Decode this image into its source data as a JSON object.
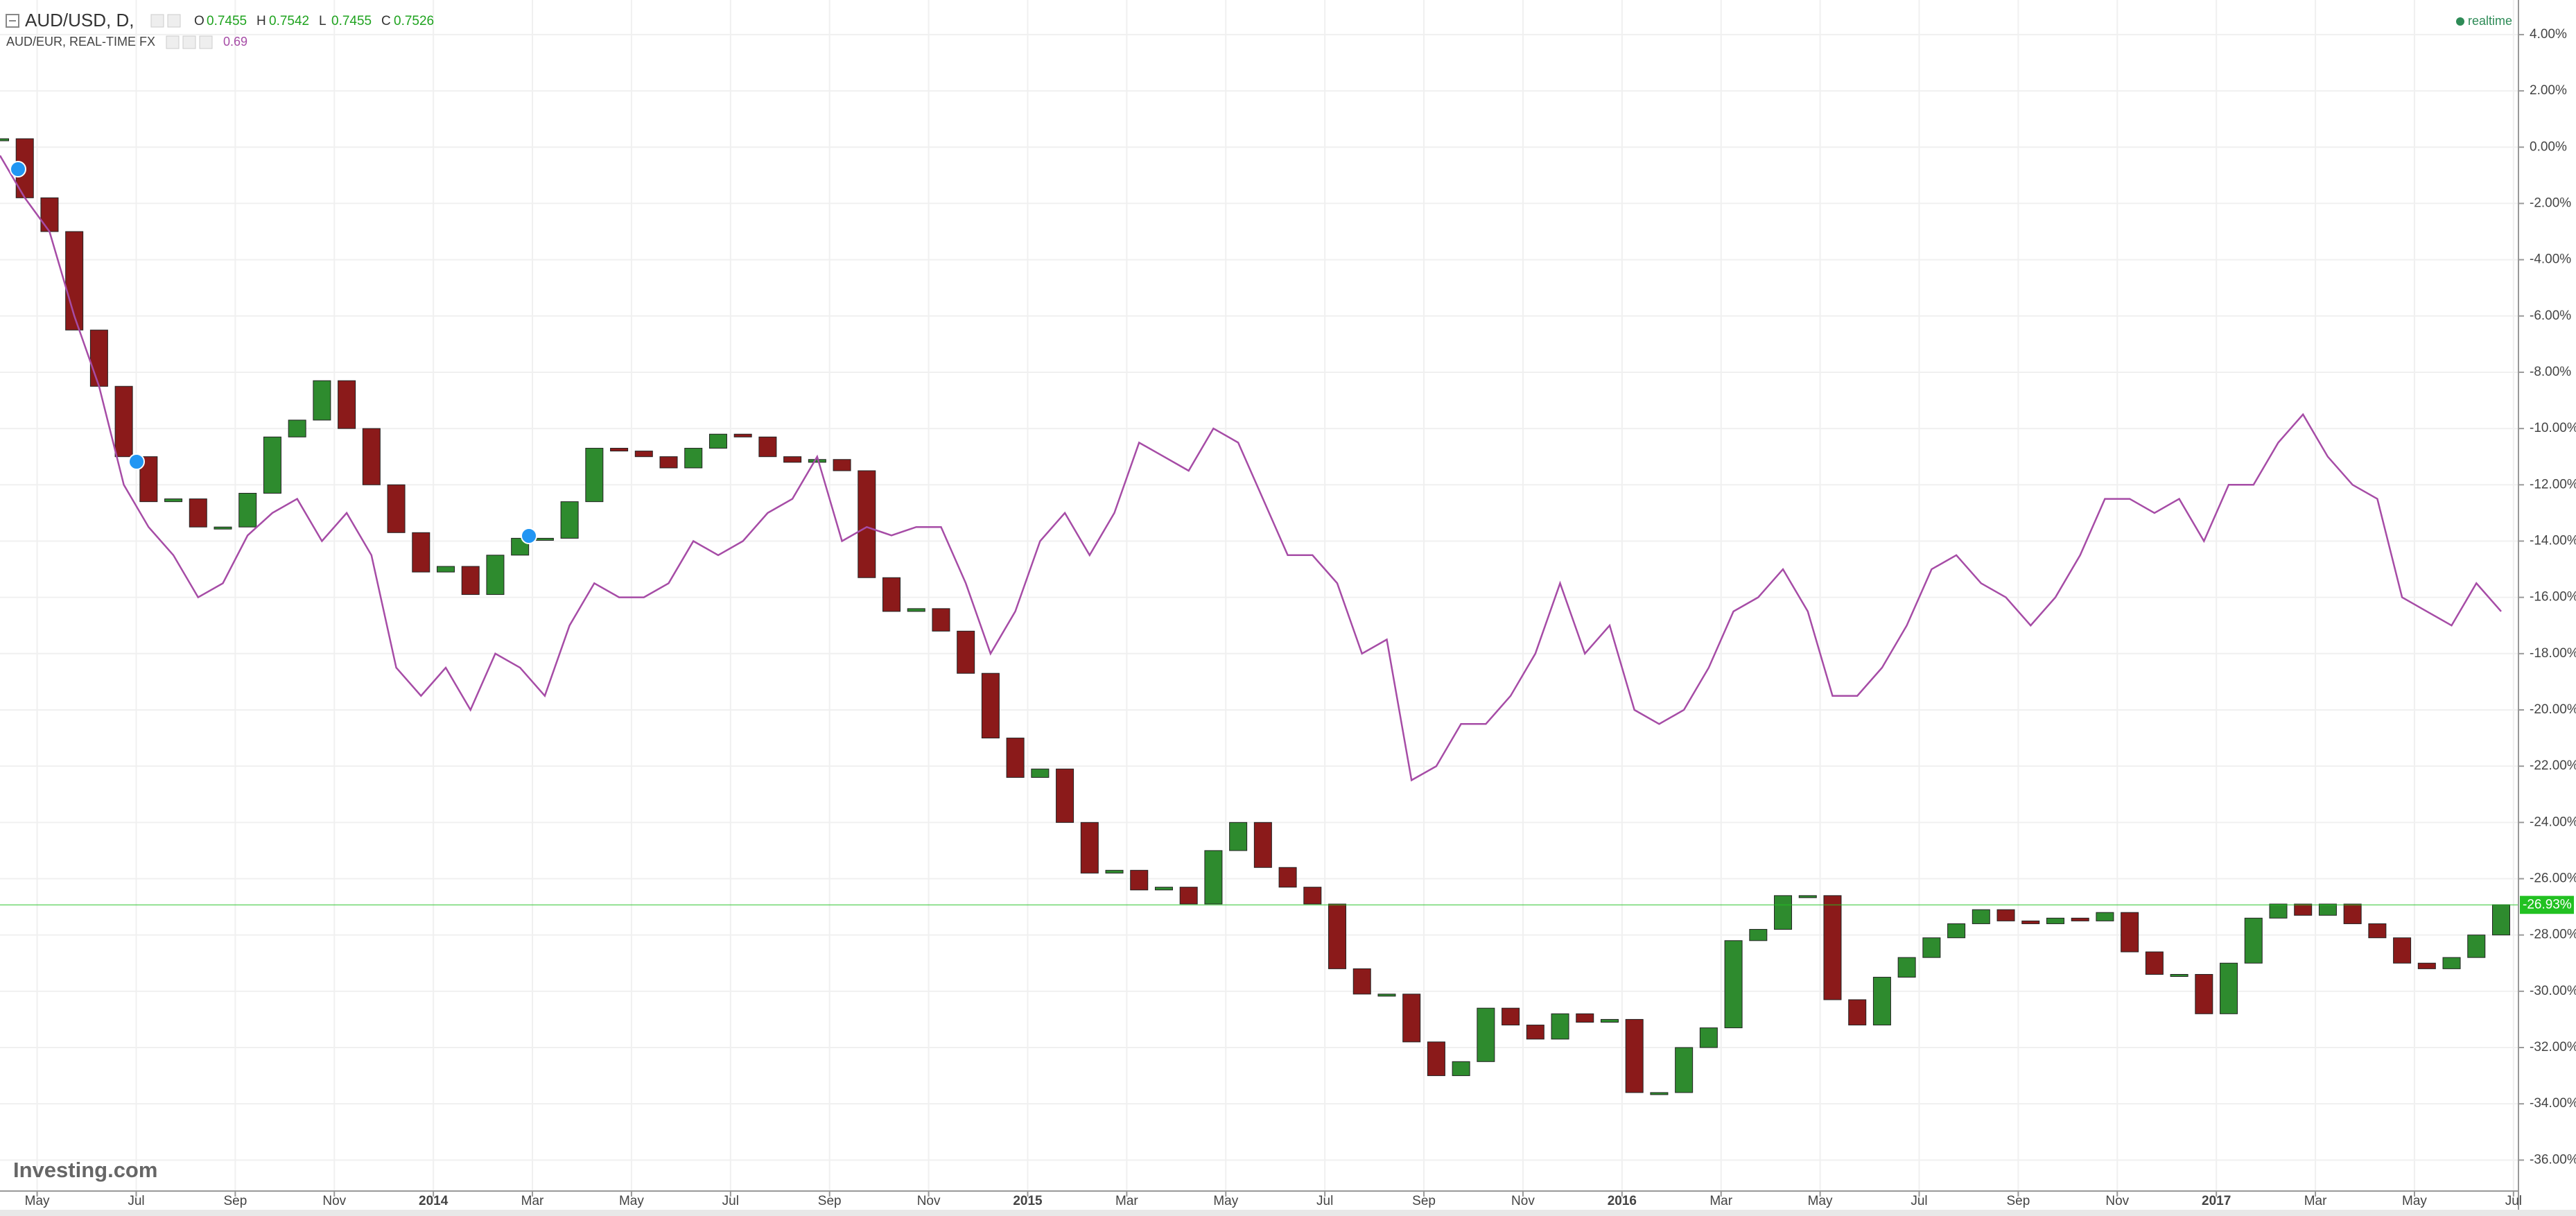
{
  "chart_data": {
    "type": "candlestick",
    "legend_title": "AUD/USD, D,",
    "ohlc": [
      {
        "label": "O",
        "value": 0.7455
      },
      {
        "label": "H",
        "value": 0.7542
      },
      {
        "label": "L",
        "value": 0.7455
      },
      {
        "label": "C",
        "value": 0.7526
      }
    ],
    "status": "realtime",
    "brand": "Investing.com",
    "x": [
      -0.75,
      -0.25,
      0.25,
      0.75,
      1.25,
      1.75,
      2.25,
      2.75,
      3.25,
      3.75,
      4.25,
      4.75,
      5.25,
      5.75,
      6.25,
      6.75,
      7.25,
      7.75,
      8.25,
      8.75,
      9.25,
      9.75,
      10.25,
      10.75,
      11.25,
      11.75,
      12.25,
      12.75,
      13.25,
      13.75,
      14.25,
      14.75,
      15.25,
      15.75,
      16.25,
      16.75,
      17.25,
      17.75,
      18.25,
      18.75,
      19.25,
      19.75,
      20.25,
      20.75,
      21.25,
      21.75,
      22.25,
      22.75,
      23.25,
      23.75,
      24.25,
      24.75,
      25.25,
      25.75,
      26.25,
      26.75,
      27.25,
      27.75,
      28.25,
      28.75,
      29.25,
      29.75,
      30.25,
      30.75,
      31.25,
      31.75,
      32.25,
      32.75,
      33.25,
      33.75,
      34.25,
      34.75,
      35.25,
      35.75,
      36.25,
      36.75,
      37.25,
      37.75,
      38.25,
      38.75,
      39.25,
      39.75,
      40.25,
      40.75,
      41.25,
      41.75,
      42.25,
      42.75,
      43.25,
      43.75,
      44.25,
      44.75,
      45.25,
      45.75,
      46.25,
      46.75,
      47.25,
      47.75,
      48.25,
      48.75,
      49.25,
      49.75
    ],
    "series": [
      {
        "name": "AUD/USD, D,",
        "type": "candlestick",
        "up_color": "#2e8b2e",
        "down_color": "#8b1a1a",
        "color": "#22c122",
        "last_value_label": "-26.93%",
        "values": [
          0.3,
          -1.8,
          -3,
          -6.5,
          -8.5,
          -11,
          -12.6,
          -12.5,
          -13.5,
          -13.5,
          -12.3,
          -10.3,
          -9.7,
          -8.3,
          -10,
          -12,
          -13.7,
          -15.1,
          -14.9,
          -15.9,
          -14.5,
          -13.9,
          -13.9,
          -12.6,
          -10.7,
          -10.8,
          -11,
          -11.4,
          -10.7,
          -10.2,
          -10.3,
          -11,
          -11.2,
          -11.1,
          -11.5,
          -15.3,
          -16.5,
          -16.4,
          -17.2,
          -18.7,
          -21,
          -22.4,
          -22.1,
          -24,
          -25.8,
          -25.7,
          -26.4,
          -26.3,
          -26.9,
          -25,
          -24,
          -25.6,
          -26.3,
          -26.9,
          -29.2,
          -30.1,
          -30.1,
          -31.8,
          -33,
          -32.5,
          -30.6,
          -31.2,
          -31.7,
          -30.8,
          -31.1,
          -31,
          -33.6,
          -33.6,
          -32,
          -31.3,
          -28.2,
          -27.8,
          -26.6,
          -26.6,
          -30.3,
          -31.2,
          -29.5,
          -28.8,
          -28.1,
          -27.6,
          -27.1,
          -27.5,
          -27.6,
          -27.4,
          -27.5,
          -27.2,
          -28.6,
          -29.4,
          -29.4,
          -30.8,
          -29,
          -27.4,
          -26.9,
          -27.3,
          -26.9,
          -27.6,
          -28.1,
          -29,
          -29.2,
          -28.8,
          -28,
          -26.93
        ]
      },
      {
        "name": "AUD/EUR, REAL-TIME FX",
        "type": "line",
        "color": "#a64ca6",
        "last_price": 0.69,
        "values": [
          -0.3,
          -1.8,
          -3,
          -6,
          -8.5,
          -12,
          -13.5,
          -14.5,
          -16,
          -15.5,
          -13.8,
          -13,
          -12.5,
          -14,
          -13,
          -14.5,
          -18.5,
          -19.5,
          -18.5,
          -20,
          -18,
          -18.5,
          -19.5,
          -17,
          -15.5,
          -16,
          -16,
          -15.5,
          -14,
          -14.5,
          -14,
          -13,
          -12.5,
          -11,
          -14,
          -13.5,
          -13.8,
          -13.5,
          -13.5,
          -15.5,
          -18,
          -16.5,
          -14,
          -13,
          -14.5,
          -13,
          -10.5,
          -11,
          -11.5,
          -10,
          -10.5,
          -12.5,
          -14.5,
          -14.5,
          -15.5,
          -18,
          -17.5,
          -22.5,
          -22,
          -20.5,
          -20.5,
          -19.5,
          -18,
          -15.5,
          -18,
          -17,
          -20,
          -20.5,
          -20,
          -18.5,
          -16.5,
          -16,
          -15,
          -16.5,
          -19.5,
          -19.5,
          -18.5,
          -17,
          -15,
          -14.5,
          -15.5,
          -16,
          -17,
          -16,
          -14.5,
          -12.5,
          -12.5,
          -13,
          -12.5,
          -14,
          -12,
          -12,
          -10.5,
          -9.5,
          -11,
          -12,
          -12.5,
          -16,
          -16.5,
          -17,
          -15.5,
          -16.5
        ]
      }
    ],
    "xlim": [
      -0.75,
      50.1
    ],
    "xticks": [
      {
        "value": 0,
        "label": "May"
      },
      {
        "value": 2,
        "label": "Jul"
      },
      {
        "value": 4,
        "label": "Sep"
      },
      {
        "value": 6,
        "label": "Nov"
      },
      {
        "value": 8,
        "label": "2014"
      },
      {
        "value": 10,
        "label": "Mar"
      },
      {
        "value": 12,
        "label": "May"
      },
      {
        "value": 14,
        "label": "Jul"
      },
      {
        "value": 16,
        "label": "Sep"
      },
      {
        "value": 18,
        "label": "Nov"
      },
      {
        "value": 20,
        "label": "2015"
      },
      {
        "value": 22,
        "label": "Mar"
      },
      {
        "value": 24,
        "label": "May"
      },
      {
        "value": 26,
        "label": "Jul"
      },
      {
        "value": 28,
        "label": "Sep"
      },
      {
        "value": 30,
        "label": "Nov"
      },
      {
        "value": 32,
        "label": "2016"
      },
      {
        "value": 34,
        "label": "Mar"
      },
      {
        "value": 36,
        "label": "May"
      },
      {
        "value": 38,
        "label": "Jul"
      },
      {
        "value": 40,
        "label": "Sep"
      },
      {
        "value": 42,
        "label": "Nov"
      },
      {
        "value": 44,
        "label": "2017"
      },
      {
        "value": 46,
        "label": "Mar"
      },
      {
        "value": 48,
        "label": "May"
      },
      {
        "value": 50,
        "label": "Jul"
      }
    ],
    "ylim": [
      -37.1,
      5.23
    ],
    "yticks": [
      {
        "value": 4,
        "label": "4.00%"
      },
      {
        "value": 2,
        "label": "2.00%"
      },
      {
        "value": 0,
        "label": "0.00%"
      },
      {
        "value": -2,
        "label": "-2.00%"
      },
      {
        "value": -4,
        "label": "-4.00%"
      },
      {
        "value": -6,
        "label": "-6.00%"
      },
      {
        "value": -8,
        "label": "-8.00%"
      },
      {
        "value": -10,
        "label": "-10.00%"
      },
      {
        "value": -12,
        "label": "-12.00%"
      },
      {
        "value": -14,
        "label": "-14.00%"
      },
      {
        "value": -16,
        "label": "-16.00%"
      },
      {
        "value": -18,
        "label": "-18.00%"
      },
      {
        "value": -20,
        "label": "-20.00%"
      },
      {
        "value": -22,
        "label": "-22.00%"
      },
      {
        "value": -24,
        "label": "-24.00%"
      },
      {
        "value": -26,
        "label": "-26.00%"
      },
      {
        "value": -28,
        "label": "-28.00%"
      },
      {
        "value": -30,
        "label": "-30.00%"
      },
      {
        "value": -32,
        "label": "-32.00%"
      },
      {
        "value": -34,
        "label": "-34.00%"
      },
      {
        "value": -36,
        "label": "-36.00%"
      }
    ],
    "grid": true
  }
}
